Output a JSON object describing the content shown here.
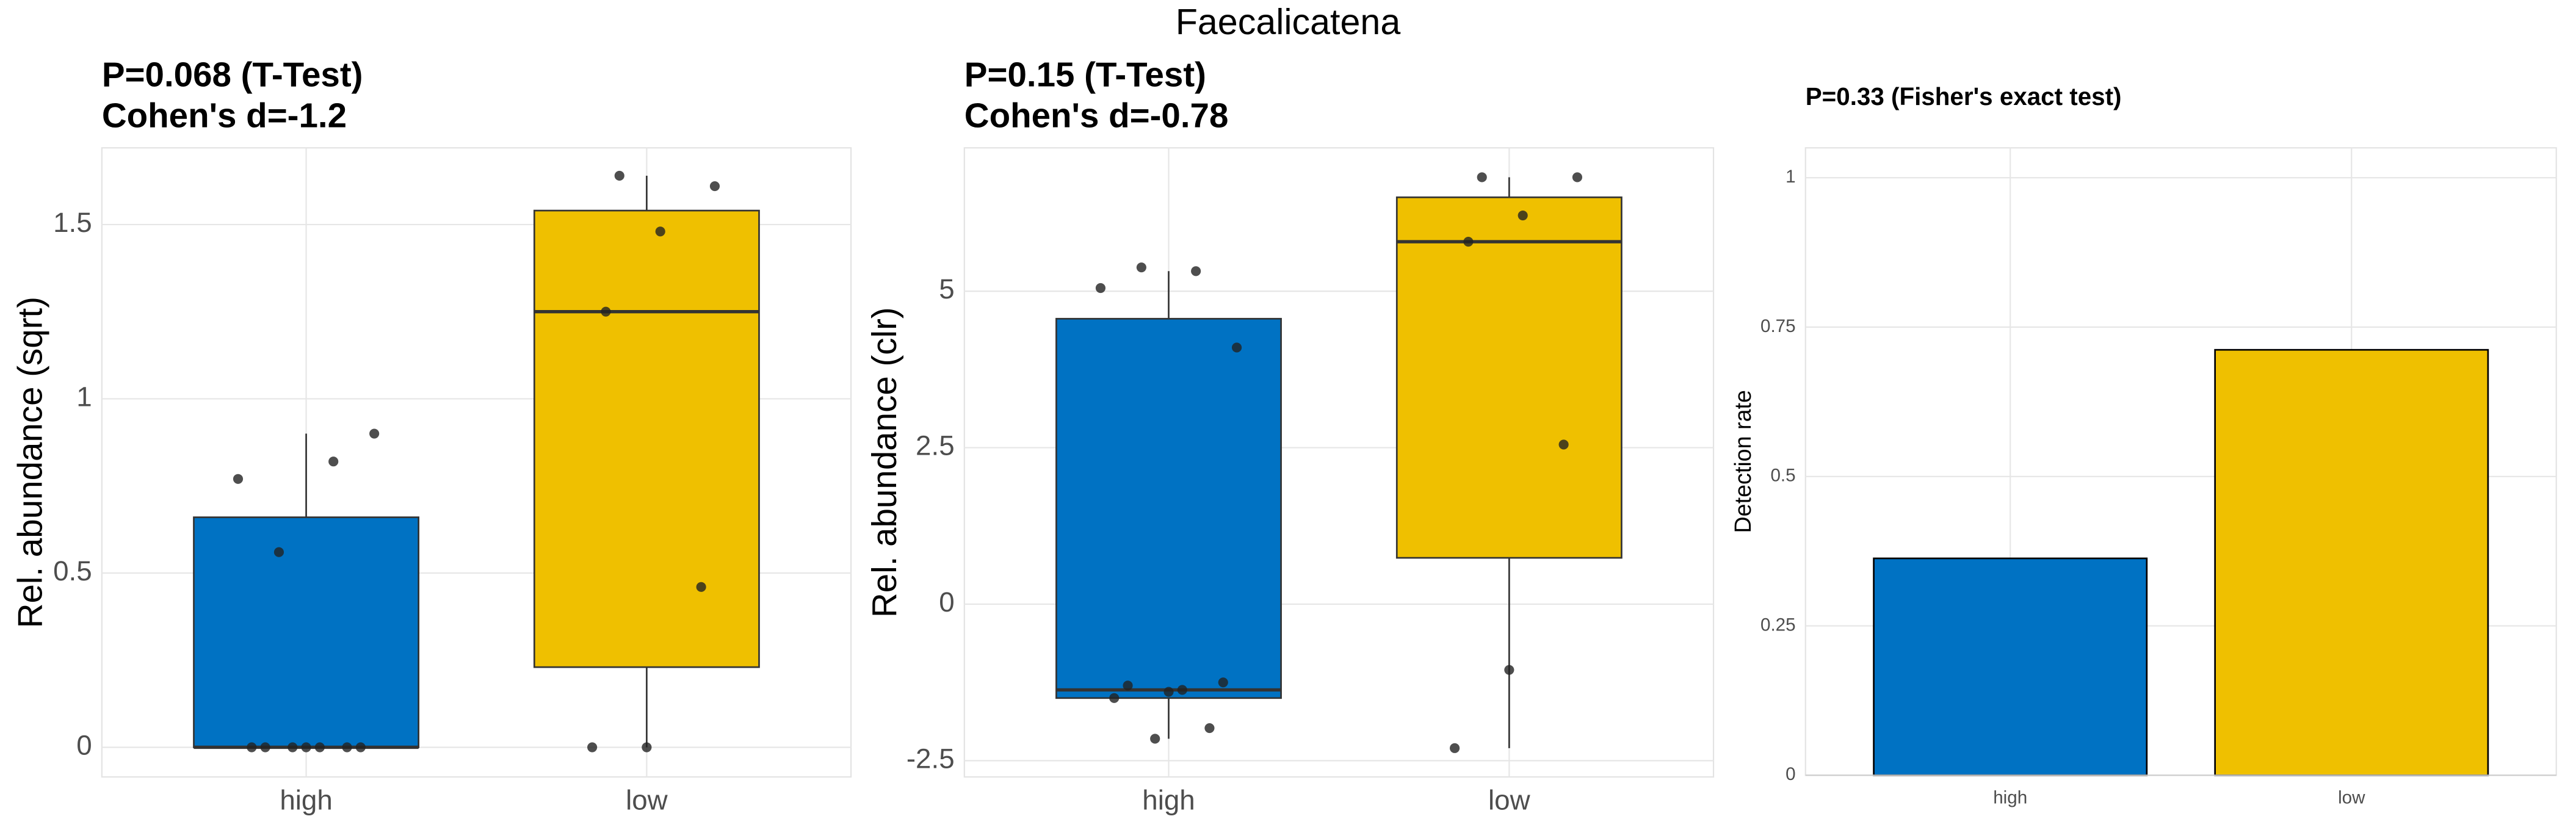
{
  "title": "Faecalicatena",
  "chart_data": [
    {
      "type": "box",
      "title_lines": [
        "P=0.068 (T-Test)",
        "Cohen's d=-1.2"
      ],
      "ylabel": "Rel. abundance (sqrt)",
      "categories": [
        "high",
        "low"
      ],
      "ylim": [
        -0.085,
        1.72
      ],
      "yticks": [
        0,
        0.5,
        1,
        1.5
      ],
      "grid": true,
      "boxes": [
        {
          "color": "#0072c3",
          "whisker_low": 0,
          "q1": 0,
          "median": 0,
          "q3": 0.66,
          "whisker_high": 0.9,
          "points": [
            0.77,
            0.82,
            0.56,
            0.9,
            0,
            0,
            0,
            0,
            0,
            0,
            0
          ]
        },
        {
          "color": "#efc000",
          "whisker_low": 0,
          "q1": 0.23,
          "median": 1.25,
          "q3": 1.54,
          "whisker_high": 1.64,
          "points": [
            1.64,
            1.61,
            1.48,
            1.25,
            0.46,
            0,
            0
          ]
        }
      ]
    },
    {
      "type": "box",
      "title_lines": [
        "P=0.15 (T-Test)",
        "Cohen's d=-0.78"
      ],
      "ylabel": "Rel. abundance (clr)",
      "categories": [
        "high",
        "low"
      ],
      "ylim": [
        -2.76,
        7.29
      ],
      "yticks": [
        -2.5,
        0,
        2.5,
        5
      ],
      "grid": true,
      "boxes": [
        {
          "color": "#0072c3",
          "whisker_low": -2.15,
          "q1": -1.5,
          "median": -1.37,
          "q3": 4.56,
          "whisker_high": 5.32,
          "points": [
            5.05,
            5.32,
            5.38,
            4.1,
            -1.37,
            -1.3,
            -1.25,
            -1.4,
            -1.5,
            -1.98,
            -2.15
          ]
        },
        {
          "color": "#efc000",
          "whisker_low": -2.3,
          "q1": 0.74,
          "median": 5.79,
          "q3": 6.5,
          "whisker_high": 6.82,
          "points": [
            6.82,
            6.82,
            6.21,
            5.79,
            2.55,
            -1.05,
            -2.3
          ]
        }
      ]
    },
    {
      "type": "bar",
      "title_lines": [
        "P=0.33 (Fisher's exact test)"
      ],
      "ylabel": "Detection rate",
      "categories": [
        "high",
        "low"
      ],
      "values": [
        0.363,
        0.712
      ],
      "colors": [
        "#0072c3",
        "#efc000"
      ],
      "ylim": [
        0,
        1.05
      ],
      "yticks": [
        0,
        0.25,
        0.5,
        0.75,
        1
      ],
      "grid": true
    }
  ]
}
